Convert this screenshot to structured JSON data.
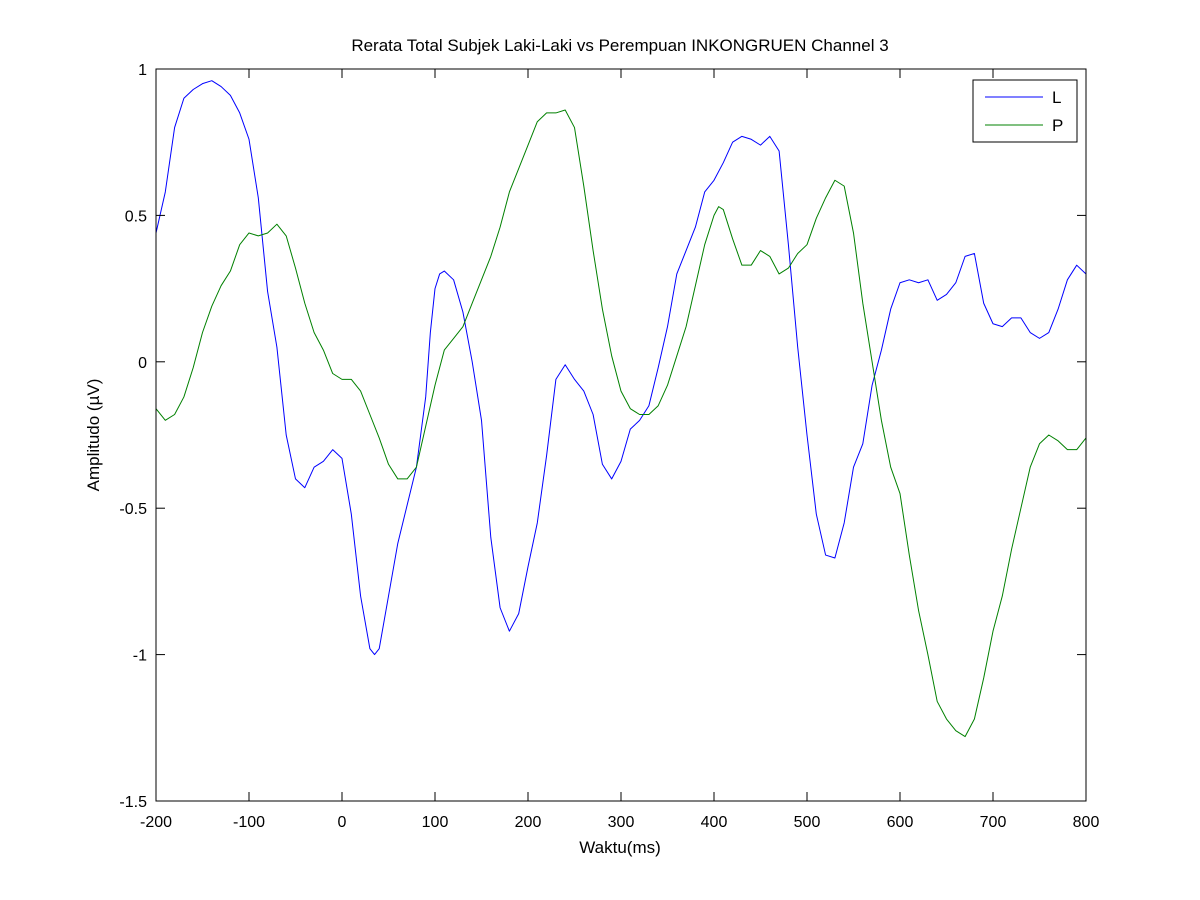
{
  "chart_data": {
    "type": "line",
    "title": "Rerata Total Subjek Laki-Laki vs Perempuan INKONGRUEN Channel 3",
    "xlabel": "Waktu(ms)",
    "ylabel": "Amplitudo (µV)",
    "xlim": [
      -200,
      800
    ],
    "ylim": [
      -1.5,
      1
    ],
    "xticks": [
      -200,
      -100,
      0,
      100,
      200,
      300,
      400,
      500,
      600,
      700,
      800
    ],
    "yticks": [
      -1.5,
      -1,
      -0.5,
      0,
      0.5,
      1
    ],
    "xtick_labels": [
      "-200",
      "-100",
      "0",
      "100",
      "200",
      "300",
      "400",
      "500",
      "600",
      "700",
      "800"
    ],
    "ytick_labels": [
      "-1.5",
      "-1",
      "-0.5",
      "0",
      "0.5",
      "1"
    ],
    "grid": false,
    "legend_position": "top-right",
    "series": [
      {
        "name": "L",
        "color": "#0000ff",
        "points": [
          [
            -200,
            0.44
          ],
          [
            -190,
            0.58
          ],
          [
            -180,
            0.8
          ],
          [
            -170,
            0.9
          ],
          [
            -160,
            0.93
          ],
          [
            -150,
            0.95
          ],
          [
            -140,
            0.96
          ],
          [
            -130,
            0.94
          ],
          [
            -120,
            0.91
          ],
          [
            -110,
            0.85
          ],
          [
            -100,
            0.76
          ],
          [
            -90,
            0.56
          ],
          [
            -80,
            0.24
          ],
          [
            -70,
            0.05
          ],
          [
            -60,
            -0.25
          ],
          [
            -50,
            -0.4
          ],
          [
            -40,
            -0.43
          ],
          [
            -30,
            -0.36
          ],
          [
            -20,
            -0.34
          ],
          [
            -10,
            -0.3
          ],
          [
            0,
            -0.33
          ],
          [
            10,
            -0.52
          ],
          [
            20,
            -0.8
          ],
          [
            30,
            -0.98
          ],
          [
            35,
            -1.0
          ],
          [
            40,
            -0.98
          ],
          [
            50,
            -0.8
          ],
          [
            60,
            -0.62
          ],
          [
            70,
            -0.49
          ],
          [
            80,
            -0.36
          ],
          [
            90,
            -0.12
          ],
          [
            95,
            0.1
          ],
          [
            100,
            0.25
          ],
          [
            105,
            0.3
          ],
          [
            110,
            0.31
          ],
          [
            120,
            0.28
          ],
          [
            130,
            0.17
          ],
          [
            140,
            0.0
          ],
          [
            150,
            -0.2
          ],
          [
            160,
            -0.6
          ],
          [
            170,
            -0.84
          ],
          [
            180,
            -0.92
          ],
          [
            190,
            -0.86
          ],
          [
            200,
            -0.7
          ],
          [
            210,
            -0.55
          ],
          [
            220,
            -0.32
          ],
          [
            230,
            -0.06
          ],
          [
            240,
            -0.01
          ],
          [
            250,
            -0.06
          ],
          [
            260,
            -0.1
          ],
          [
            270,
            -0.18
          ],
          [
            280,
            -0.35
          ],
          [
            290,
            -0.4
          ],
          [
            300,
            -0.34
          ],
          [
            310,
            -0.23
          ],
          [
            320,
            -0.2
          ],
          [
            330,
            -0.15
          ],
          [
            340,
            -0.02
          ],
          [
            350,
            0.12
          ],
          [
            360,
            0.3
          ],
          [
            370,
            0.38
          ],
          [
            380,
            0.46
          ],
          [
            390,
            0.58
          ],
          [
            400,
            0.62
          ],
          [
            410,
            0.68
          ],
          [
            420,
            0.75
          ],
          [
            430,
            0.77
          ],
          [
            440,
            0.76
          ],
          [
            450,
            0.74
          ],
          [
            460,
            0.77
          ],
          [
            470,
            0.72
          ],
          [
            480,
            0.4
          ],
          [
            490,
            0.05
          ],
          [
            500,
            -0.25
          ],
          [
            510,
            -0.52
          ],
          [
            520,
            -0.66
          ],
          [
            530,
            -0.67
          ],
          [
            540,
            -0.55
          ],
          [
            550,
            -0.36
          ],
          [
            560,
            -0.28
          ],
          [
            570,
            -0.08
          ],
          [
            580,
            0.04
          ],
          [
            590,
            0.18
          ],
          [
            600,
            0.27
          ],
          [
            610,
            0.28
          ],
          [
            620,
            0.27
          ],
          [
            630,
            0.28
          ],
          [
            640,
            0.21
          ],
          [
            650,
            0.23
          ],
          [
            660,
            0.27
          ],
          [
            670,
            0.36
          ],
          [
            680,
            0.37
          ],
          [
            690,
            0.2
          ],
          [
            700,
            0.13
          ],
          [
            710,
            0.12
          ],
          [
            720,
            0.15
          ],
          [
            730,
            0.15
          ],
          [
            740,
            0.1
          ],
          [
            750,
            0.08
          ],
          [
            760,
            0.1
          ],
          [
            770,
            0.18
          ],
          [
            780,
            0.28
          ],
          [
            790,
            0.33
          ],
          [
            800,
            0.3
          ]
        ]
      },
      {
        "name": "P",
        "color": "#008000",
        "points": [
          [
            -200,
            -0.16
          ],
          [
            -190,
            -0.2
          ],
          [
            -180,
            -0.18
          ],
          [
            -170,
            -0.12
          ],
          [
            -160,
            -0.02
          ],
          [
            -150,
            0.1
          ],
          [
            -140,
            0.19
          ],
          [
            -130,
            0.26
          ],
          [
            -120,
            0.31
          ],
          [
            -110,
            0.4
          ],
          [
            -100,
            0.44
          ],
          [
            -90,
            0.43
          ],
          [
            -80,
            0.44
          ],
          [
            -70,
            0.47
          ],
          [
            -60,
            0.43
          ],
          [
            -50,
            0.32
          ],
          [
            -40,
            0.2
          ],
          [
            -30,
            0.1
          ],
          [
            -20,
            0.04
          ],
          [
            -10,
            -0.04
          ],
          [
            0,
            -0.06
          ],
          [
            10,
            -0.06
          ],
          [
            20,
            -0.1
          ],
          [
            30,
            -0.18
          ],
          [
            40,
            -0.26
          ],
          [
            50,
            -0.35
          ],
          [
            60,
            -0.4
          ],
          [
            70,
            -0.4
          ],
          [
            80,
            -0.36
          ],
          [
            90,
            -0.22
          ],
          [
            100,
            -0.08
          ],
          [
            110,
            0.04
          ],
          [
            120,
            0.08
          ],
          [
            130,
            0.12
          ],
          [
            140,
            0.2
          ],
          [
            150,
            0.28
          ],
          [
            160,
            0.36
          ],
          [
            170,
            0.46
          ],
          [
            180,
            0.58
          ],
          [
            190,
            0.66
          ],
          [
            200,
            0.74
          ],
          [
            210,
            0.82
          ],
          [
            220,
            0.85
          ],
          [
            230,
            0.85
          ],
          [
            240,
            0.86
          ],
          [
            250,
            0.8
          ],
          [
            260,
            0.6
          ],
          [
            270,
            0.38
          ],
          [
            280,
            0.18
          ],
          [
            290,
            0.02
          ],
          [
            300,
            -0.1
          ],
          [
            310,
            -0.16
          ],
          [
            320,
            -0.18
          ],
          [
            330,
            -0.18
          ],
          [
            340,
            -0.15
          ],
          [
            350,
            -0.08
          ],
          [
            360,
            0.02
          ],
          [
            370,
            0.12
          ],
          [
            380,
            0.26
          ],
          [
            390,
            0.4
          ],
          [
            400,
            0.5
          ],
          [
            405,
            0.53
          ],
          [
            410,
            0.52
          ],
          [
            420,
            0.42
          ],
          [
            430,
            0.33
          ],
          [
            440,
            0.33
          ],
          [
            450,
            0.38
          ],
          [
            460,
            0.36
          ],
          [
            470,
            0.3
          ],
          [
            480,
            0.32
          ],
          [
            490,
            0.37
          ],
          [
            500,
            0.4
          ],
          [
            510,
            0.49
          ],
          [
            520,
            0.56
          ],
          [
            530,
            0.62
          ],
          [
            540,
            0.6
          ],
          [
            550,
            0.44
          ],
          [
            560,
            0.2
          ],
          [
            570,
            0.0
          ],
          [
            580,
            -0.2
          ],
          [
            590,
            -0.36
          ],
          [
            600,
            -0.45
          ],
          [
            610,
            -0.66
          ],
          [
            620,
            -0.85
          ],
          [
            630,
            -1.0
          ],
          [
            640,
            -1.16
          ],
          [
            650,
            -1.22
          ],
          [
            660,
            -1.26
          ],
          [
            670,
            -1.28
          ],
          [
            680,
            -1.22
          ],
          [
            690,
            -1.08
          ],
          [
            700,
            -0.92
          ],
          [
            710,
            -0.8
          ],
          [
            720,
            -0.64
          ],
          [
            730,
            -0.5
          ],
          [
            740,
            -0.36
          ],
          [
            750,
            -0.28
          ],
          [
            760,
            -0.25
          ],
          [
            770,
            -0.27
          ],
          [
            780,
            -0.3
          ],
          [
            790,
            -0.3
          ],
          [
            800,
            -0.26
          ]
        ]
      }
    ]
  }
}
